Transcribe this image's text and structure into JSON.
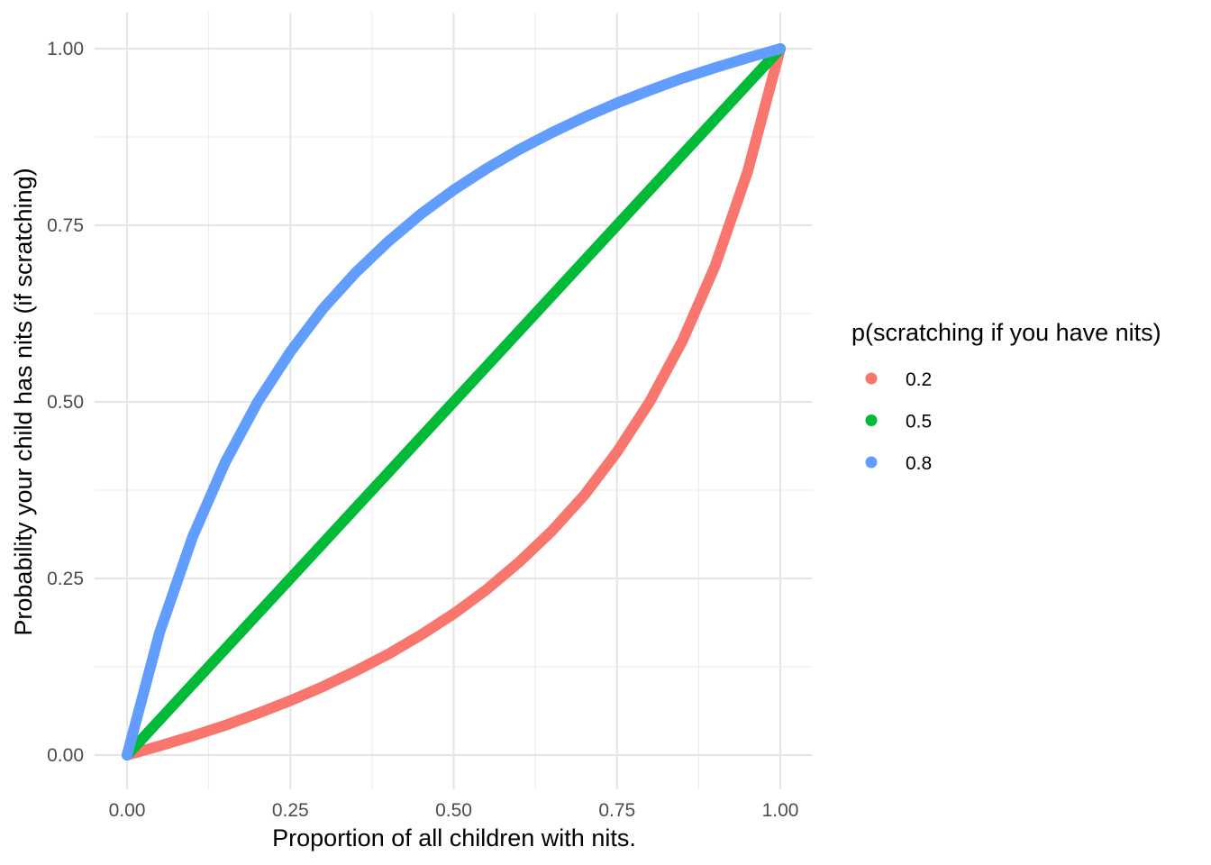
{
  "chart_data": {
    "type": "line",
    "title": "",
    "xlabel": "Proportion of all children with nits.",
    "ylabel": "Probability your child has nits (if scratching)",
    "xlim": [
      0,
      1
    ],
    "ylim": [
      0,
      1
    ],
    "x_ticks": [
      0,
      0.25,
      0.5,
      0.75,
      1
    ],
    "x_tick_labels": [
      "0.00",
      "0.25",
      "0.50",
      "0.75",
      "1.00"
    ],
    "y_ticks": [
      0,
      0.25,
      0.5,
      0.75,
      1
    ],
    "y_tick_labels": [
      "0.00",
      "0.25",
      "0.50",
      "0.75",
      "1.00"
    ],
    "grid": true,
    "legend": {
      "title": "p(scratching if you have nits)",
      "position": "right"
    },
    "x": [
      0,
      0.05,
      0.1,
      0.15,
      0.2,
      0.25,
      0.3,
      0.35,
      0.4,
      0.45,
      0.5,
      0.55,
      0.6,
      0.65,
      0.7,
      0.75,
      0.8,
      0.85,
      0.9,
      0.95,
      1
    ],
    "series": [
      {
        "name": "0.2",
        "color": "#F8766D",
        "values": [
          0,
          0.013,
          0.027,
          0.042,
          0.059,
          0.077,
          0.097,
          0.119,
          0.143,
          0.17,
          0.2,
          0.234,
          0.273,
          0.317,
          0.368,
          0.429,
          0.5,
          0.586,
          0.692,
          0.826,
          1
        ]
      },
      {
        "name": "0.5",
        "color": "#00BA38",
        "values": [
          0,
          0.05,
          0.1,
          0.15,
          0.2,
          0.25,
          0.3,
          0.35,
          0.4,
          0.45,
          0.5,
          0.55,
          0.6,
          0.65,
          0.7,
          0.75,
          0.8,
          0.85,
          0.9,
          0.95,
          1
        ]
      },
      {
        "name": "0.8",
        "color": "#619CFF",
        "values": [
          0,
          0.174,
          0.308,
          0.414,
          0.5,
          0.571,
          0.632,
          0.683,
          0.727,
          0.766,
          0.8,
          0.83,
          0.857,
          0.881,
          0.903,
          0.923,
          0.941,
          0.958,
          0.973,
          0.987,
          1
        ]
      }
    ]
  }
}
